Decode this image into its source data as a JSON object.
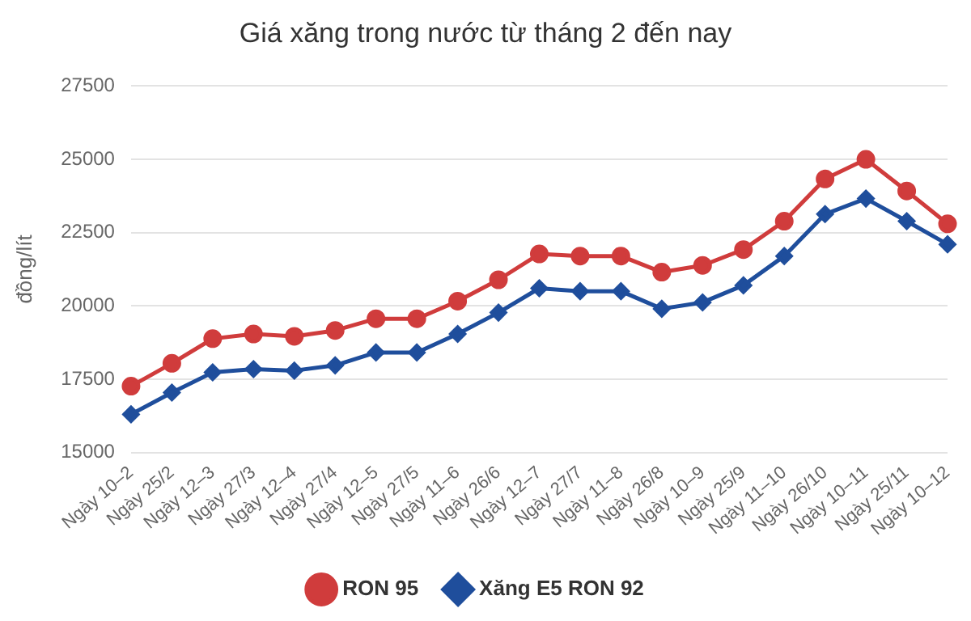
{
  "chart_data": {
    "type": "line",
    "title": "Giá xăng trong nước từ tháng 2 đến nay",
    "ylabel": "đồng/lít",
    "categories": [
      "Ngày 10–2",
      "Ngày 25/2",
      "Ngày 12–3",
      "Ngày 27/3",
      "Ngày 12–4",
      "Ngày 27/4",
      "Ngày 12–5",
      "Ngày 27/5",
      "Ngày 11–6",
      "Ngày 26/6",
      "Ngày 12–7",
      "Ngày 27/7",
      "Ngày 11–8",
      "Ngày 26/8",
      "Ngày 10–9",
      "Ngày 25/9",
      "Ngày 11–10",
      "Ngày 26/10",
      "Ngày 10–11",
      "Ngày 25/11",
      "Ngày 10–12"
    ],
    "series": [
      {
        "name": "RON 95",
        "color": "#d03c3c",
        "marker": "circle",
        "values": [
          17260,
          18040,
          18880,
          19040,
          18960,
          19160,
          19560,
          19560,
          20160,
          20890,
          21770,
          21700,
          21700,
          21150,
          21380,
          21920,
          22890,
          24330,
          25000,
          23920,
          22800
        ]
      },
      {
        "name": "Xăng E5 RON 92",
        "color": "#1f4e9c",
        "marker": "diamond",
        "values": [
          16300,
          17040,
          17730,
          17840,
          17790,
          17970,
          18410,
          18410,
          19040,
          19770,
          20600,
          20500,
          20500,
          19900,
          20120,
          20700,
          21700,
          23130,
          23660,
          22890,
          22100
        ]
      }
    ],
    "ylim": [
      15000,
      27500
    ],
    "yticks": [
      15000,
      17500,
      20000,
      22500,
      25000,
      27500
    ],
    "grid": "y",
    "legend": "bottom"
  }
}
